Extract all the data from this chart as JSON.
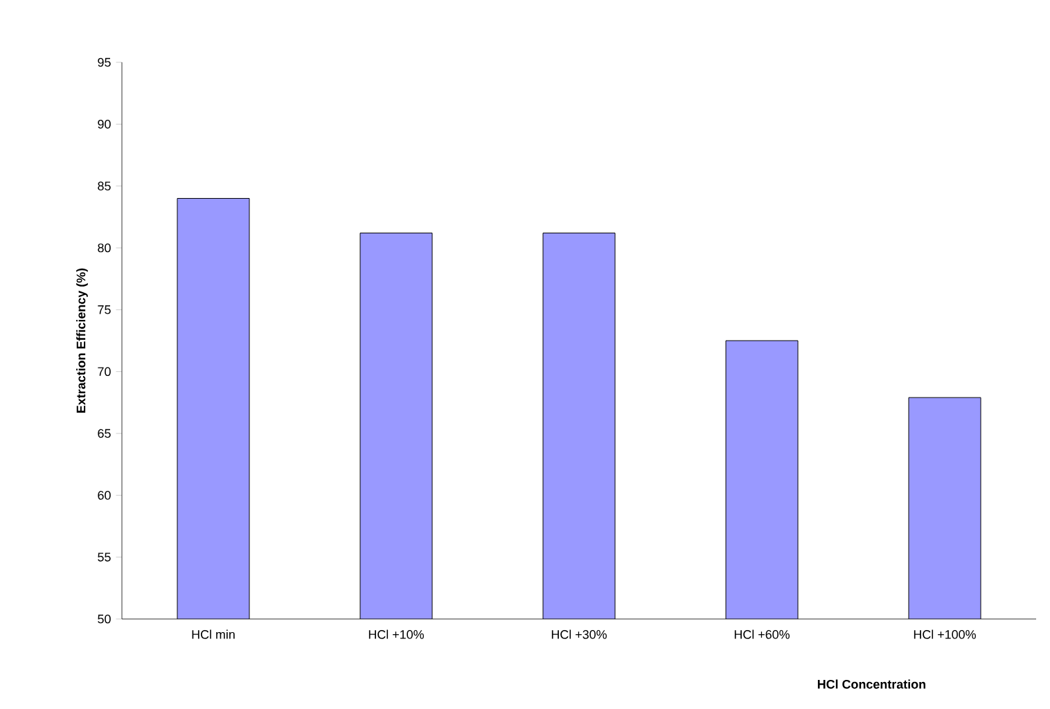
{
  "chart_data": {
    "type": "bar",
    "xlabel": "HCl Concentration",
    "ylabel": "Extraction Efficiency (%)",
    "categories": [
      "HCl min",
      "HCl +10%",
      "HCl +30%",
      "HCl +60%",
      "HCl +100%"
    ],
    "values": [
      84,
      81.2,
      81.2,
      72.5,
      67.9
    ],
    "color": "#9999ff",
    "ylim": [
      50,
      95
    ],
    "yticks": [
      50,
      55,
      60,
      65,
      70,
      75,
      80,
      85,
      90,
      95
    ],
    "grid": false
  }
}
